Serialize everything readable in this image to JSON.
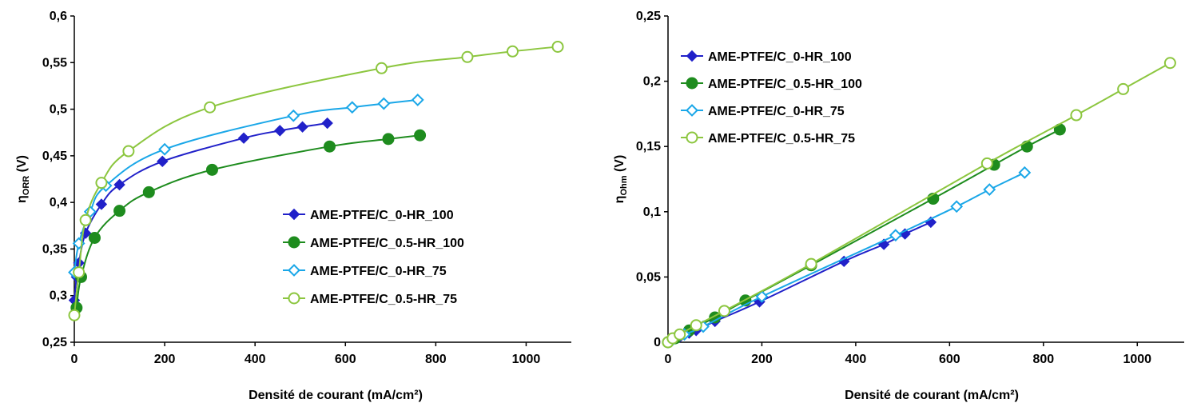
{
  "chart_data": [
    {
      "type": "line",
      "xlabel": "Densité de courant (mA/cm²)",
      "ylabel_main": "η",
      "ylabel_sub": "ORR",
      "ylabel_unit": " (V)",
      "xlim": [
        0,
        1100
      ],
      "ylim": [
        0.25,
        0.6
      ],
      "xticks": [
        0,
        200,
        400,
        600,
        800,
        1000
      ],
      "yticks": [
        0.25,
        0.3,
        0.35,
        0.4,
        0.45,
        0.5,
        0.55,
        0.6
      ],
      "xtick_labels": [
        "0",
        "200",
        "400",
        "600",
        "800",
        "1000"
      ],
      "ytick_labels": [
        "0,25",
        "0,3",
        "0,35",
        "0,4",
        "0,45",
        "0,5",
        "0,55",
        "0,6"
      ],
      "legend_position": "lower-right",
      "series": [
        {
          "name": "AME-PTFE/C_0-HR_100",
          "color": "#2121c9",
          "marker": "diamond-filled",
          "x": [
            0,
            5,
            10,
            25,
            60,
            100,
            195,
            375,
            455,
            505,
            560
          ],
          "y": [
            0.295,
            0.32,
            0.335,
            0.367,
            0.398,
            0.419,
            0.444,
            0.469,
            0.477,
            0.481,
            0.485
          ]
        },
        {
          "name": "AME-PTFE/C_0.5-HR_100",
          "color": "#1e8c1e",
          "marker": "circle-filled",
          "x": [
            5,
            15,
            45,
            100,
            165,
            305,
            565,
            695,
            765
          ],
          "y": [
            0.287,
            0.32,
            0.362,
            0.391,
            0.411,
            0.435,
            0.46,
            0.468,
            0.472
          ]
        },
        {
          "name": "AME-PTFE/C_0-HR_75",
          "color": "#1aa7e8",
          "marker": "diamond-open",
          "x": [
            0,
            10,
            35,
            70,
            200,
            485,
            615,
            685,
            760
          ],
          "y": [
            0.325,
            0.356,
            0.39,
            0.418,
            0.457,
            0.493,
            0.502,
            0.506,
            0.51
          ]
        },
        {
          "name": "AME-PTFE/C_0.5-HR_75",
          "color": "#8cc63f",
          "marker": "circle-open",
          "x": [
            0,
            10,
            25,
            60,
            120,
            300,
            680,
            870,
            970,
            1070
          ],
          "y": [
            0.279,
            0.325,
            0.381,
            0.421,
            0.455,
            0.502,
            0.544,
            0.556,
            0.562,
            0.567
          ]
        }
      ]
    },
    {
      "type": "line",
      "xlabel": "Densité de courant (mA/cm²)",
      "ylabel_main": "η",
      "ylabel_sub": "Ohm",
      "ylabel_unit": " (V)",
      "xlim": [
        0,
        1100
      ],
      "ylim": [
        0,
        0.25
      ],
      "xticks": [
        0,
        200,
        400,
        600,
        800,
        1000
      ],
      "yticks": [
        0,
        0.05,
        0.1,
        0.15,
        0.2,
        0.25
      ],
      "xtick_labels": [
        "0",
        "200",
        "400",
        "600",
        "800",
        "1000"
      ],
      "ytick_labels": [
        "0",
        "0,05",
        "0,1",
        "0,15",
        "0,2",
        "0,25"
      ],
      "legend_position": "top-left",
      "series": [
        {
          "name": "AME-PTFE/C_0-HR_100",
          "color": "#2121c9",
          "marker": "diamond-filled",
          "x": [
            0,
            10,
            25,
            45,
            60,
            100,
            195,
            375,
            460,
            505,
            560
          ],
          "y": [
            0,
            0.002,
            0.004,
            0.007,
            0.009,
            0.016,
            0.031,
            0.062,
            0.075,
            0.083,
            0.092
          ]
        },
        {
          "name": "AME-PTFE/C_0.5-HR_100",
          "color": "#1e8c1e",
          "marker": "circle-filled",
          "x": [
            0,
            15,
            45,
            100,
            165,
            305,
            565,
            695,
            765,
            835
          ],
          "y": [
            0,
            0.003,
            0.009,
            0.019,
            0.032,
            0.059,
            0.11,
            0.136,
            0.15,
            0.163
          ]
        },
        {
          "name": "AME-PTFE/C_0-HR_75",
          "color": "#1aa7e8",
          "marker": "diamond-open",
          "x": [
            0,
            10,
            35,
            75,
            200,
            485,
            615,
            685,
            760
          ],
          "y": [
            0,
            0.002,
            0.006,
            0.012,
            0.035,
            0.082,
            0.104,
            0.117,
            0.13
          ]
        },
        {
          "name": "AME-PTFE/C_0.5-HR_75",
          "color": "#8cc63f",
          "marker": "circle-open",
          "x": [
            0,
            10,
            25,
            60,
            120,
            305,
            680,
            870,
            970,
            1070
          ],
          "y": [
            0,
            0.003,
            0.006,
            0.013,
            0.024,
            0.06,
            0.137,
            0.174,
            0.194,
            0.214
          ]
        }
      ]
    }
  ]
}
